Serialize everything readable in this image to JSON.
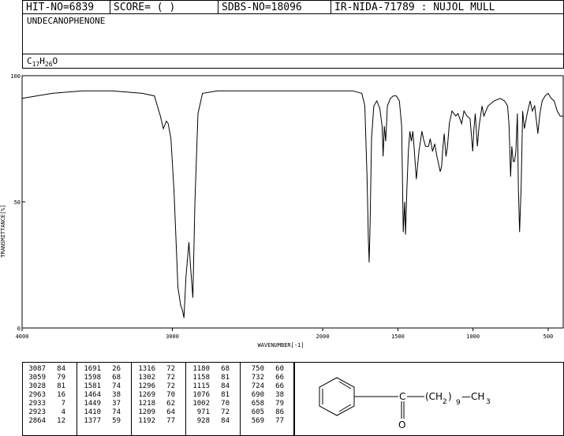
{
  "header": {
    "hit_no": "HIT-NO=6839",
    "score": "SCORE=  (   )",
    "sdbs_no": "SDBS-NO=18096",
    "ir_nida": "IR-NIDA-71789 : NUJOL MULL"
  },
  "compound": {
    "name": "UNDECANOPHENONE",
    "formula_parts": [
      "C",
      "17",
      "H",
      "26",
      "O"
    ]
  },
  "chart_data": {
    "type": "line",
    "xlabel": "WAVENUMBER[-1]",
    "ylabel": "TRANSMITTANCE[%]",
    "xlim": [
      4000,
      400
    ],
    "ylim": [
      0,
      100
    ],
    "x_ticks": [
      4000,
      3000,
      2000,
      1500,
      1000,
      500
    ],
    "y_ticks": [
      0,
      50,
      100
    ],
    "grid": false,
    "series": [
      {
        "x": [
          4000,
          3800,
          3600,
          3400,
          3200,
          3120,
          3080,
          3060,
          3040,
          3028,
          3010,
          2990,
          2963,
          2945,
          2933,
          2923,
          2910,
          2890,
          2880,
          2864,
          2850,
          2830,
          2800,
          2700,
          2600,
          2500,
          2400,
          2300,
          2200,
          2100,
          2000,
          1900,
          1800,
          1740,
          1720,
          1705,
          1696,
          1691,
          1685,
          1675,
          1660,
          1640,
          1620,
          1605,
          1598,
          1590,
          1581,
          1570,
          1550,
          1530,
          1510,
          1490,
          1475,
          1464,
          1455,
          1449,
          1440,
          1430,
          1420,
          1410,
          1400,
          1390,
          1377,
          1360,
          1340,
          1330,
          1316,
          1302,
          1296,
          1285,
          1269,
          1255,
          1240,
          1218,
          1209,
          1200,
          1192,
          1180,
          1170,
          1158,
          1140,
          1115,
          1100,
          1076,
          1060,
          1040,
          1020,
          1002,
          995,
          985,
          971,
          960,
          940,
          928,
          900,
          860,
          820,
          790,
          770,
          760,
          750,
          742,
          732,
          724,
          715,
          705,
          698,
          690,
          680,
          670,
          658,
          640,
          620,
          605,
          590,
          570,
          569,
          555,
          540,
          520,
          500,
          480,
          460,
          440,
          420,
          400
        ],
        "y": [
          91,
          93,
          94,
          94,
          93,
          92,
          84,
          79,
          82,
          81,
          75,
          55,
          16,
          9,
          7,
          4,
          20,
          34,
          25,
          12,
          50,
          85,
          93,
          94,
          94,
          94,
          94,
          94,
          94,
          94,
          94,
          94,
          94,
          93,
          88,
          60,
          35,
          26,
          40,
          75,
          88,
          90,
          87,
          80,
          68,
          80,
          74,
          88,
          91,
          92,
          92,
          90,
          80,
          38,
          50,
          37,
          55,
          70,
          78,
          74,
          78,
          70,
          59,
          70,
          78,
          75,
          72,
          72,
          72,
          75,
          70,
          73,
          68,
          62,
          64,
          72,
          77,
          68,
          72,
          81,
          86,
          84,
          85,
          81,
          86,
          84,
          83,
          70,
          78,
          85,
          72,
          80,
          88,
          84,
          88,
          90,
          91,
          90,
          88,
          80,
          60,
          72,
          66,
          66,
          70,
          85,
          55,
          38,
          55,
          86,
          79,
          85,
          90,
          86,
          88,
          78,
          77,
          85,
          90,
          92,
          93,
          91,
          90,
          86,
          84,
          84
        ]
      }
    ]
  },
  "peak_table": [
    [
      [
        "3087",
        "84"
      ],
      [
        "3059",
        "79"
      ],
      [
        "3028",
        "81"
      ],
      [
        "2963",
        "16"
      ],
      [
        "2933",
        "7"
      ],
      [
        "2923",
        "4"
      ],
      [
        "2864",
        "12"
      ]
    ],
    [
      [
        "1691",
        "26"
      ],
      [
        "1598",
        "68"
      ],
      [
        "1581",
        "74"
      ],
      [
        "1464",
        "38"
      ],
      [
        "1449",
        "37"
      ],
      [
        "1410",
        "74"
      ],
      [
        "1377",
        "59"
      ]
    ],
    [
      [
        "1316",
        "72"
      ],
      [
        "1302",
        "72"
      ],
      [
        "1296",
        "72"
      ],
      [
        "1269",
        "70"
      ],
      [
        "1218",
        "62"
      ],
      [
        "1209",
        "64"
      ],
      [
        "1192",
        "77"
      ]
    ],
    [
      [
        "1180",
        "68"
      ],
      [
        "1158",
        "81"
      ],
      [
        "1115",
        "84"
      ],
      [
        "1076",
        "81"
      ],
      [
        "1002",
        "70"
      ],
      [
        "971",
        "72"
      ],
      [
        "928",
        "84"
      ]
    ],
    [
      [
        "750",
        "60"
      ],
      [
        "732",
        "66"
      ],
      [
        "724",
        "66"
      ],
      [
        "690",
        "38"
      ],
      [
        "658",
        "79"
      ],
      [
        "605",
        "86"
      ],
      [
        "569",
        "77"
      ]
    ]
  ],
  "structure": {
    "carbonyl_c": "C",
    "carbonyl_o": "O",
    "chain": "(CH",
    "chain_sub": "2",
    "chain_close": ")",
    "chain_count": "9",
    "terminal": "—CH",
    "terminal_sub": "3"
  }
}
